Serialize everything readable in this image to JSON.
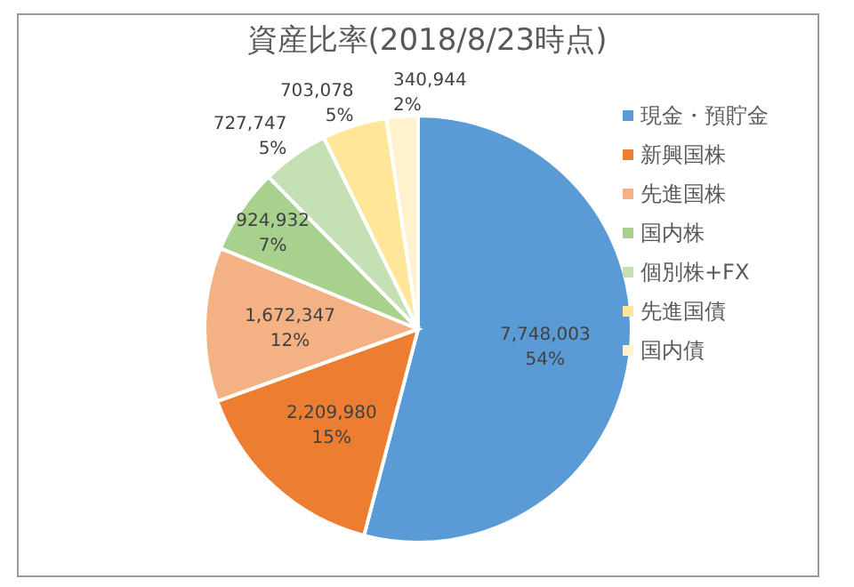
{
  "chart_data": {
    "type": "pie",
    "title": "資産比率(2018/8/23時点)",
    "categories": [
      "現金・預貯金",
      "新興国株",
      "先進国株",
      "国内株",
      "個別株+FX",
      "先進国債",
      "国内債"
    ],
    "values": [
      7748003,
      2209980,
      1672347,
      924932,
      727747,
      703078,
      340944
    ],
    "value_labels": [
      "7,748,003\n54%",
      "2,209,980\n15%",
      "1,672,347\n12%",
      "924,932\n7%",
      "727,747\n5%",
      "703,078\n5%",
      "340,944\n2%"
    ],
    "colors": [
      "#5b9bd5",
      "#ed7d31",
      "#f4b183",
      "#a9d18e",
      "#c5e0b4",
      "#ffe699",
      "#fff2cc"
    ],
    "legend": "right"
  }
}
